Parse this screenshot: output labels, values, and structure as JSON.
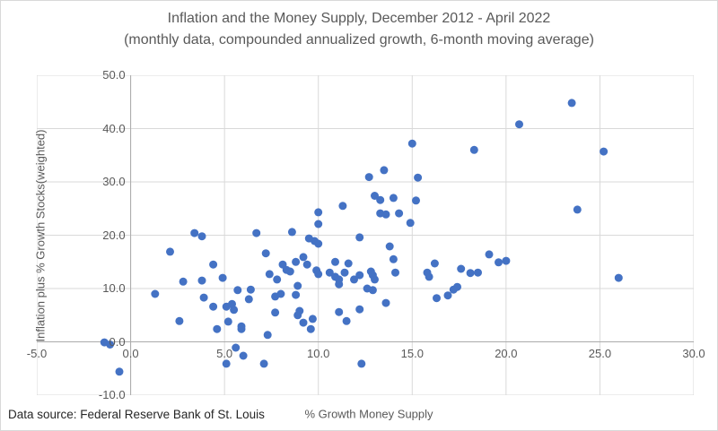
{
  "chart_data": {
    "type": "scatter",
    "title": "Inflation and the Money Supply, December 2012 - April 2022",
    "subtitle": "(monthly data, compounded annualized growth, 6-month moving average)",
    "xlabel": "% Growth Money Supply",
    "ylabel": "Inflation plus % Growth Stocks(weighted)",
    "xlim": [
      -5,
      30
    ],
    "ylim": [
      -10,
      50
    ],
    "x_ticks": [
      "-5.0",
      "0.0",
      "5.0",
      "10.0",
      "15.0",
      "20.0",
      "25.0",
      "30.0"
    ],
    "y_ticks": [
      "-10.0",
      "0.0",
      "10.0",
      "20.0",
      "30.0",
      "40.0",
      "50.0"
    ],
    "grid": true,
    "legend": "none",
    "marker_color": "#4472C4",
    "gridline_color": "#d9d9d9",
    "axisline_color": "#ababab",
    "points": [
      [
        3.4,
        20.4
      ],
      [
        3.8,
        19.8
      ],
      [
        6.7,
        20.4
      ],
      [
        15.0,
        37.2
      ],
      [
        18.3,
        36.0
      ],
      [
        20.7,
        40.8
      ],
      [
        23.5,
        44.8
      ],
      [
        25.2,
        35.7
      ],
      [
        23.8,
        24.8
      ],
      [
        13.5,
        32.2
      ],
      [
        12.7,
        30.9
      ],
      [
        15.3,
        30.8
      ],
      [
        13.0,
        27.4
      ],
      [
        13.3,
        26.6
      ],
      [
        14.0,
        27.0
      ],
      [
        15.2,
        26.5
      ],
      [
        11.3,
        25.5
      ],
      [
        10.0,
        24.3
      ],
      [
        13.3,
        24.1
      ],
      [
        13.6,
        23.9
      ],
      [
        14.3,
        24.1
      ],
      [
        14.9,
        22.3
      ],
      [
        10.0,
        22.1
      ],
      [
        8.6,
        20.6
      ],
      [
        9.5,
        19.4
      ],
      [
        9.8,
        18.9
      ],
      [
        12.2,
        19.6
      ],
      [
        10.0,
        18.4
      ],
      [
        2.1,
        16.9
      ],
      [
        4.4,
        14.5
      ],
      [
        2.8,
        11.3
      ],
      [
        3.8,
        11.5
      ],
      [
        4.9,
        12.0
      ],
      [
        1.3,
        9.0
      ],
      [
        3.9,
        8.3
      ],
      [
        5.7,
        9.7
      ],
      [
        6.4,
        9.8
      ],
      [
        6.3,
        8.0
      ],
      [
        4.4,
        6.6
      ],
      [
        5.1,
        6.6
      ],
      [
        5.5,
        6.0
      ],
      [
        5.4,
        7.1
      ],
      [
        2.6,
        3.9
      ],
      [
        5.2,
        3.8
      ],
      [
        4.6,
        2.4
      ],
      [
        5.9,
        2.9
      ],
      [
        5.9,
        2.4
      ],
      [
        5.6,
        -1.1
      ],
      [
        6.0,
        -2.6
      ],
      [
        5.1,
        -4.1
      ],
      [
        -0.6,
        -5.6
      ],
      [
        -1.4,
        -0.1
      ],
      [
        -1.1,
        -0.5
      ],
      [
        7.2,
        16.6
      ],
      [
        13.8,
        17.9
      ],
      [
        9.2,
        15.9
      ],
      [
        9.4,
        14.5
      ],
      [
        8.1,
        14.5
      ],
      [
        8.3,
        13.5
      ],
      [
        8.5,
        13.2
      ],
      [
        7.4,
        12.7
      ],
      [
        7.8,
        11.7
      ],
      [
        8.8,
        15.0
      ],
      [
        10.9,
        15.0
      ],
      [
        11.6,
        14.7
      ],
      [
        9.9,
        13.4
      ],
      [
        10.0,
        12.7
      ],
      [
        10.6,
        13.0
      ],
      [
        10.9,
        12.2
      ],
      [
        11.1,
        11.7
      ],
      [
        11.1,
        10.8
      ],
      [
        11.4,
        13.0
      ],
      [
        11.9,
        11.7
      ],
      [
        12.2,
        12.5
      ],
      [
        12.8,
        13.2
      ],
      [
        12.9,
        12.5
      ],
      [
        13.0,
        11.7
      ],
      [
        14.0,
        15.5
      ],
      [
        14.1,
        13.0
      ],
      [
        12.6,
        10.0
      ],
      [
        12.9,
        9.7
      ],
      [
        7.7,
        8.5
      ],
      [
        8.0,
        9.0
      ],
      [
        8.8,
        8.8
      ],
      [
        8.9,
        10.5
      ],
      [
        13.6,
        7.3
      ],
      [
        7.7,
        5.5
      ],
      [
        8.9,
        5.0
      ],
      [
        9.0,
        5.8
      ],
      [
        9.2,
        3.6
      ],
      [
        9.6,
        2.4
      ],
      [
        9.7,
        4.3
      ],
      [
        11.1,
        5.6
      ],
      [
        11.5,
        3.9
      ],
      [
        12.2,
        6.1
      ],
      [
        7.3,
        1.3
      ],
      [
        7.1,
        -4.1
      ],
      [
        12.3,
        -4.1
      ],
      [
        15.8,
        13.0
      ],
      [
        15.9,
        12.2
      ],
      [
        16.2,
        14.7
      ],
      [
        16.3,
        8.2
      ],
      [
        16.9,
        8.7
      ],
      [
        17.2,
        9.8
      ],
      [
        17.4,
        10.3
      ],
      [
        17.6,
        13.7
      ],
      [
        18.1,
        12.9
      ],
      [
        18.5,
        13.0
      ],
      [
        19.1,
        16.4
      ],
      [
        19.6,
        14.9
      ],
      [
        20.0,
        15.2
      ],
      [
        26.0,
        12.0
      ]
    ]
  },
  "footer": {
    "source": "Data source: Federal Reserve Bank of St. Louis"
  }
}
